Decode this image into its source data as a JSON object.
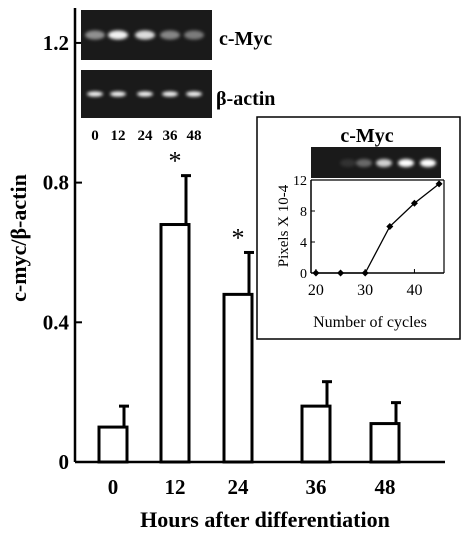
{
  "chart_data": [
    {
      "type": "bar",
      "title": "",
      "xlabel": "Hours after differentiation",
      "ylabel": "c-myc/β-actin",
      "categories": [
        "0",
        "12",
        "24",
        "36",
        "48"
      ],
      "values": [
        0.1,
        0.68,
        0.48,
        0.16,
        0.11
      ],
      "errors": [
        0.06,
        0.14,
        0.12,
        0.07,
        0.06
      ],
      "significance": [
        "",
        "*",
        "*",
        "",
        ""
      ],
      "ylim": [
        0,
        1.3
      ],
      "yticks": [
        "0",
        "0.4",
        "0.8",
        "1.2"
      ],
      "grid": false,
      "gel_labels": {
        "top_band": "c-Myc",
        "bottom_band": "β-actin",
        "lanes": [
          "0",
          "12",
          "24",
          "36",
          "48"
        ]
      }
    },
    {
      "type": "line",
      "title": "c-Myc",
      "xlabel": "Number of cycles",
      "ylabel": "Pixels X 10-4",
      "x": [
        20,
        25,
        30,
        35,
        40,
        45
      ],
      "y": [
        0,
        0,
        0,
        6,
        9,
        11.5
      ],
      "xlim": [
        19,
        46
      ],
      "ylim": [
        0,
        12
      ],
      "xticks": [
        "20",
        "30",
        "40"
      ],
      "yticks": [
        "0",
        "4",
        "8",
        "12"
      ],
      "grid": false
    }
  ],
  "colors": {
    "ink": "#000000",
    "bar_fill": "#ffffff",
    "gel_bg": "#1a1a1a",
    "band": "#f2f2f2"
  }
}
